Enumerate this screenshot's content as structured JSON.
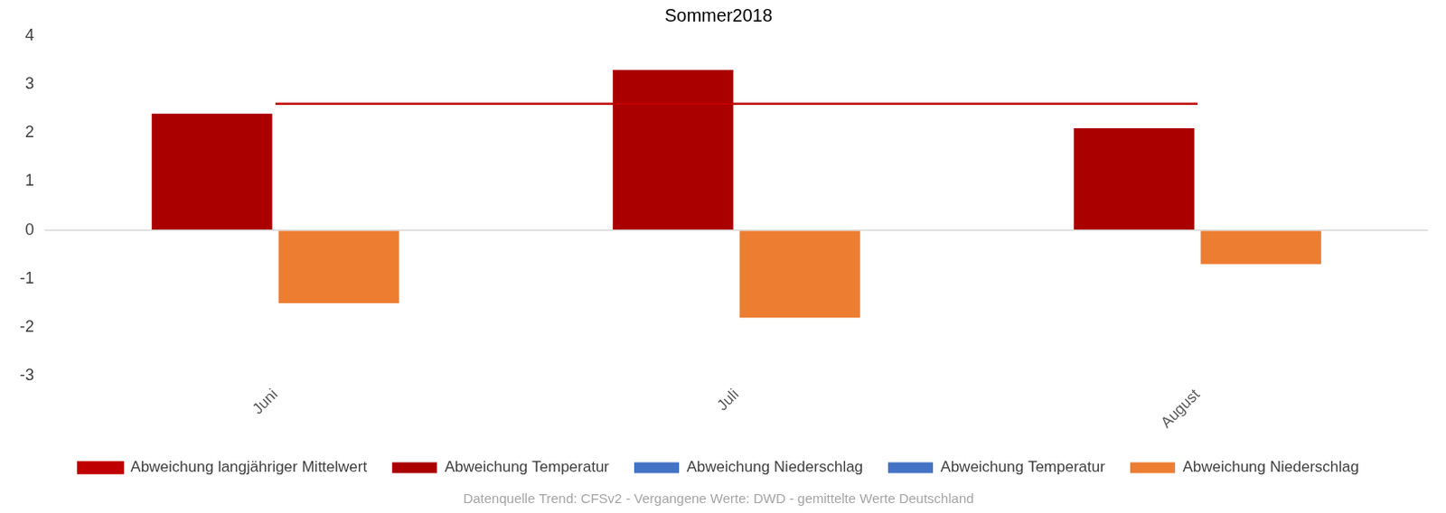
{
  "chart_data": {
    "type": "bar",
    "title": "Sommer2018",
    "annotation": "Datenquelle Trend: CFSv2 - Vergangene Werte: DWD - gemittelte Werte Deutschland",
    "categories": [
      "Juni",
      "Juli",
      "August"
    ],
    "series": [
      {
        "name": "Abweichung Temperatur",
        "color": "#aa0000",
        "values": [
          2.4,
          3.3,
          2.1
        ]
      },
      {
        "name": "Abweichung Niederschlag",
        "color": "#4472c4",
        "values": [
          null,
          null,
          null
        ]
      },
      {
        "name": "Abweichung langjähriger Mittelwert",
        "color": "#c00000",
        "type": "line",
        "values": [
          2.6,
          2.6,
          2.6
        ]
      },
      {
        "name": "Abweichung Temperatur",
        "color": "#4472c4",
        "values": [
          null,
          null,
          null
        ]
      },
      {
        "name": "Abweichung Niederschlag",
        "color": "#ed7d31",
        "values": [
          -1.5,
          -1.8,
          -0.7
        ]
      }
    ],
    "ylim": [
      -3,
      4
    ],
    "yticks": [
      -3,
      -2,
      -1,
      0,
      1,
      2,
      3,
      4
    ],
    "grid": false,
    "legend": "bottom"
  }
}
